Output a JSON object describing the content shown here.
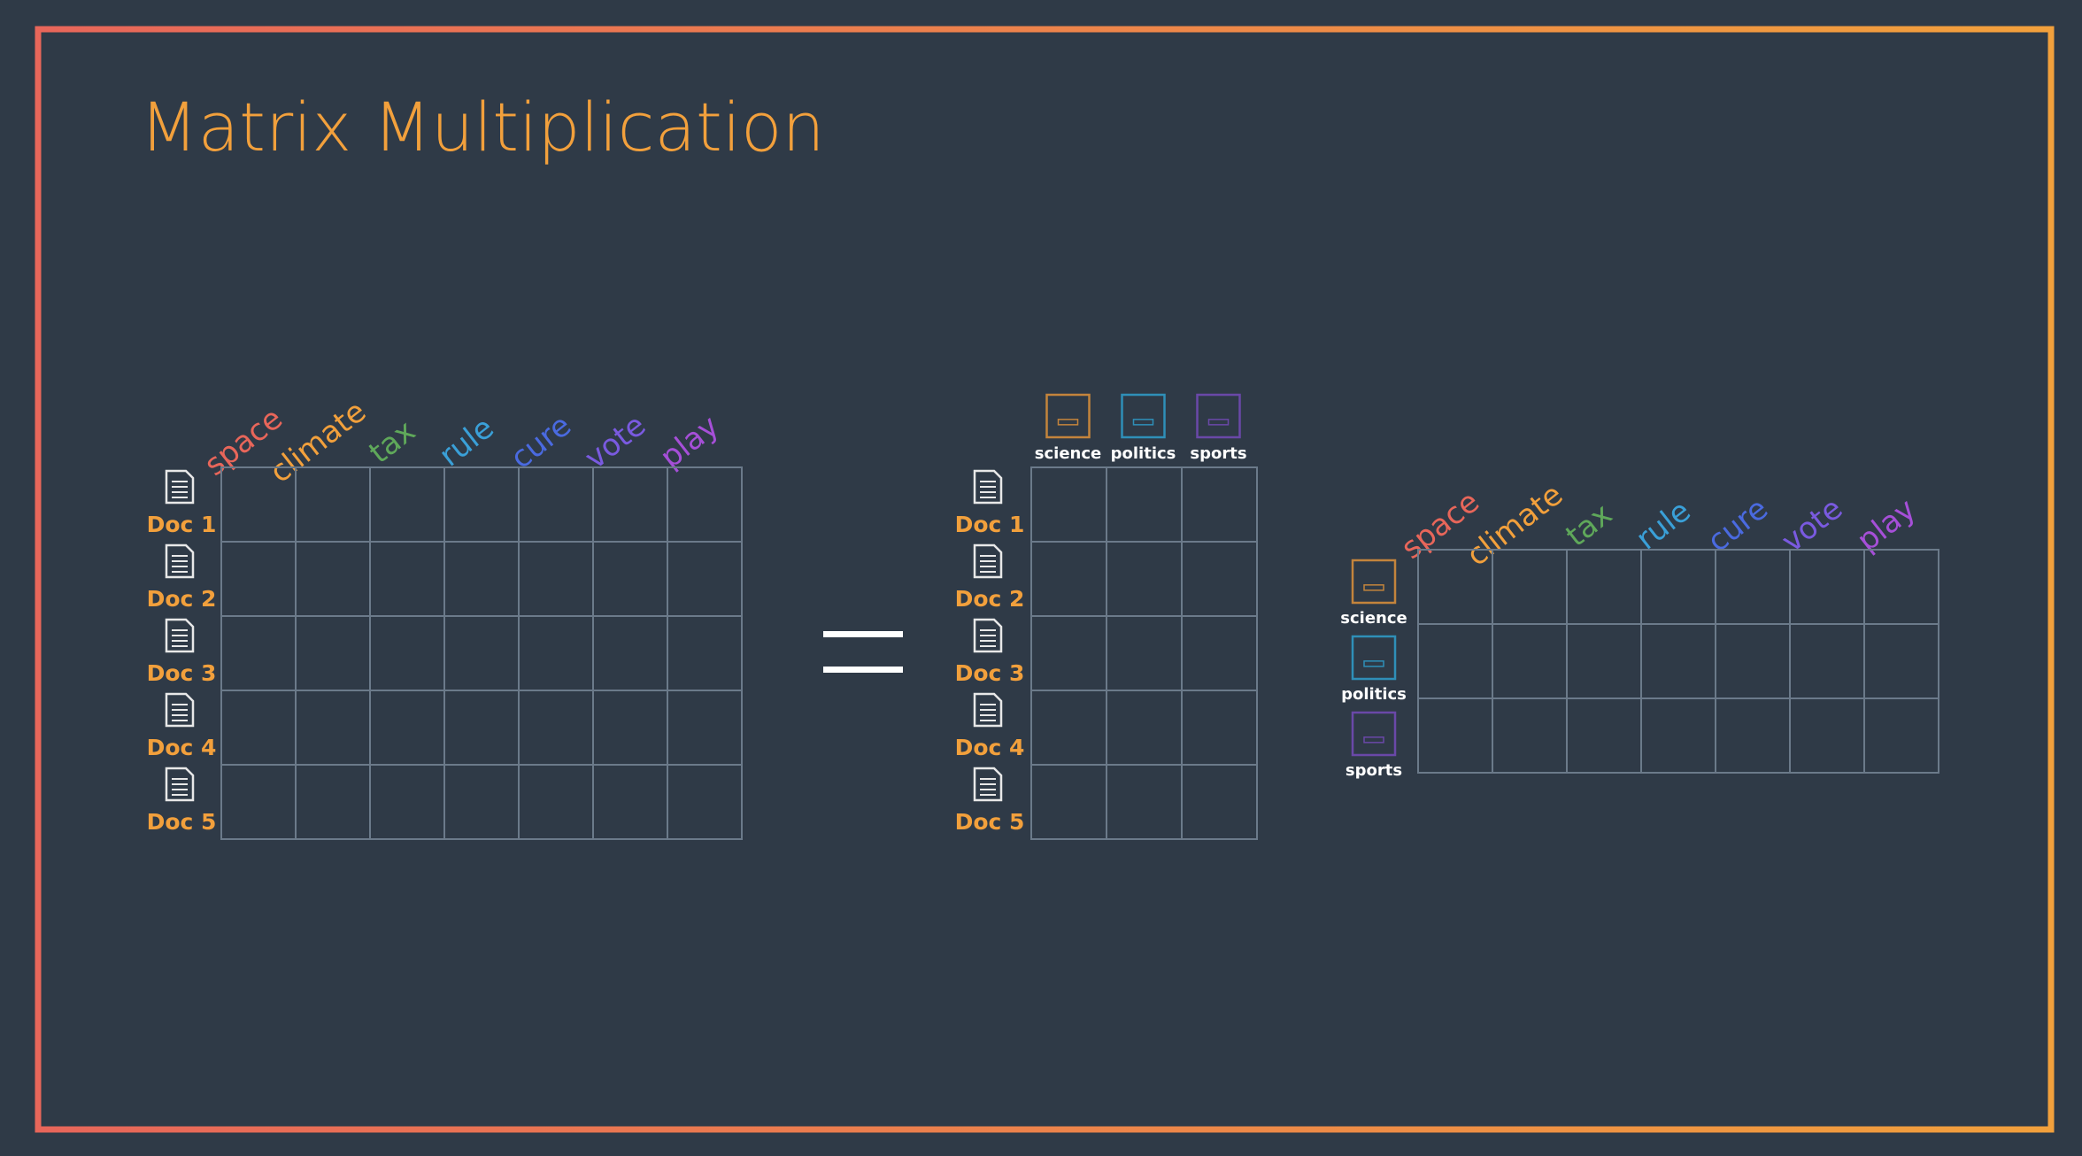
{
  "slide": {
    "title": "Matrix Multiplication",
    "title_color": "#f2a03c",
    "background": "#2f3a47",
    "frame_gradient": [
      "#e8665a",
      "#f2a03c"
    ],
    "grid_color": "#6b7a8a",
    "icon_color": "#e8e8e8"
  },
  "words": [
    {
      "text": "space",
      "color": "#e8665a"
    },
    {
      "text": "climate",
      "color": "#f2a03c"
    },
    {
      "text": "tax",
      "color": "#5fa85a"
    },
    {
      "text": "rule",
      "color": "#3aa0d8"
    },
    {
      "text": "cure",
      "color": "#4a6ae0"
    },
    {
      "text": "vote",
      "color": "#7a5ae0"
    },
    {
      "text": "play",
      "color": "#a64fd8"
    }
  ],
  "docs": [
    {
      "label": "Doc 1"
    },
    {
      "label": "Doc 2"
    },
    {
      "label": "Doc 3"
    },
    {
      "label": "Doc 4"
    },
    {
      "label": "Doc 5"
    }
  ],
  "doc_label_color": "#f2a03c",
  "topics": [
    {
      "label": "science",
      "color": "#c4843c"
    },
    {
      "label": "politics",
      "color": "#2f8fb8"
    },
    {
      "label": "sports",
      "color": "#6a48a8"
    }
  ],
  "topic_label_color": "#ffffff",
  "equals_color": "#ffffff"
}
